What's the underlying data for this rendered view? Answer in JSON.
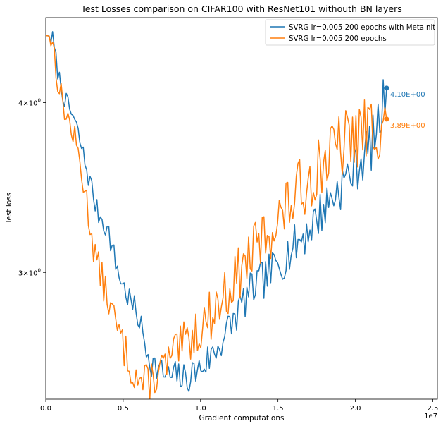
{
  "chart_data": {
    "type": "line",
    "title": "Test Losses comparison on CIFAR100 with ResNet101 withouth BN layers",
    "xlabel": "Gradient computations",
    "ylabel": "Test loss",
    "xlim": [
      0,
      25300000
    ],
    "ylim": [
      2.42,
      4.62
    ],
    "yscale": "log",
    "x_offset_text": "1e7",
    "xticks": [
      {
        "value": 0,
        "label": "0.0"
      },
      {
        "value": 5000000,
        "label": "0.5"
      },
      {
        "value": 10000000,
        "label": "1.0"
      },
      {
        "value": 15000000,
        "label": "1.5"
      },
      {
        "value": 20000000,
        "label": "2.0"
      },
      {
        "value": 25000000,
        "label": "2.5"
      }
    ],
    "yticks": [
      {
        "value": 3,
        "base": "3",
        "mult": "×",
        "ten": "10",
        "exp": "0"
      },
      {
        "value": 4,
        "base": "4",
        "mult": "×",
        "ten": "10",
        "exp": "0"
      }
    ],
    "grid": false,
    "legend_position": "top-right",
    "series": [
      {
        "name": "SVRG lr=0.005 200 epochs with MetaInit",
        "color": "#1f77b4",
        "end_label": "4.10E+00",
        "anchors": [
          [
            0,
            4.48
          ],
          [
            200000,
            4.48
          ],
          [
            450000,
            4.45
          ],
          [
            650000,
            4.3
          ],
          [
            900000,
            4.15
          ],
          [
            1300000,
            4.0
          ],
          [
            1800000,
            3.9
          ],
          [
            2200000,
            3.75
          ],
          [
            2700000,
            3.55
          ],
          [
            3000000,
            3.45
          ],
          [
            3300000,
            3.33
          ],
          [
            3700000,
            3.28
          ],
          [
            4100000,
            3.2
          ],
          [
            4500000,
            3.05
          ],
          [
            5000000,
            2.93
          ],
          [
            5500000,
            2.85
          ],
          [
            6000000,
            2.78
          ],
          [
            6400000,
            2.66
          ],
          [
            6800000,
            2.58
          ],
          [
            7200000,
            2.55
          ],
          [
            7600000,
            2.53
          ],
          [
            8000000,
            2.51
          ],
          [
            8500000,
            2.52
          ],
          [
            9000000,
            2.5
          ],
          [
            9500000,
            2.53
          ],
          [
            10000000,
            2.55
          ],
          [
            10500000,
            2.59
          ],
          [
            11000000,
            2.63
          ],
          [
            11500000,
            2.69
          ],
          [
            12000000,
            2.75
          ],
          [
            12500000,
            2.82
          ],
          [
            13000000,
            2.88
          ],
          [
            13500000,
            2.93
          ],
          [
            14000000,
            2.96
          ],
          [
            14500000,
            3.0
          ],
          [
            15000000,
            3.04
          ],
          [
            15500000,
            3.09
          ],
          [
            16000000,
            3.13
          ],
          [
            16500000,
            3.18
          ],
          [
            17000000,
            3.23
          ],
          [
            17500000,
            3.29
          ],
          [
            18000000,
            3.35
          ],
          [
            18500000,
            3.41
          ],
          [
            19000000,
            3.47
          ],
          [
            19500000,
            3.53
          ],
          [
            20000000,
            3.58
          ],
          [
            20500000,
            3.65
          ],
          [
            21000000,
            3.72
          ],
          [
            21500000,
            3.85
          ],
          [
            21900000,
            4.05
          ],
          [
            22020000,
            4.1
          ]
        ],
        "amp": 0.045,
        "seed": 7
      },
      {
        "name": "SVRG lr=0.005 200 epochs",
        "color": "#ff7f0e",
        "end_label": "3.89E+00",
        "anchors": [
          [
            0,
            4.48
          ],
          [
            200000,
            4.48
          ],
          [
            450000,
            4.44
          ],
          [
            650000,
            4.25
          ],
          [
            900000,
            4.08
          ],
          [
            1300000,
            3.93
          ],
          [
            1800000,
            3.78
          ],
          [
            2200000,
            3.62
          ],
          [
            2700000,
            3.35
          ],
          [
            3000000,
            3.18
          ],
          [
            3300000,
            3.05
          ],
          [
            3700000,
            2.95
          ],
          [
            4100000,
            2.85
          ],
          [
            4500000,
            2.75
          ],
          [
            5000000,
            2.65
          ],
          [
            5500000,
            2.56
          ],
          [
            6000000,
            2.5
          ],
          [
            6400000,
            2.48
          ],
          [
            6800000,
            2.5
          ],
          [
            7200000,
            2.53
          ],
          [
            7600000,
            2.55
          ],
          [
            8000000,
            2.58
          ],
          [
            8500000,
            2.62
          ],
          [
            9000000,
            2.66
          ],
          [
            9500000,
            2.7
          ],
          [
            10000000,
            2.74
          ],
          [
            10500000,
            2.78
          ],
          [
            11000000,
            2.83
          ],
          [
            11500000,
            2.88
          ],
          [
            12000000,
            2.94
          ],
          [
            12500000,
            3.0
          ],
          [
            13000000,
            3.06
          ],
          [
            13500000,
            3.12
          ],
          [
            14000000,
            3.17
          ],
          [
            14500000,
            3.23
          ],
          [
            15000000,
            3.28
          ],
          [
            15500000,
            3.34
          ],
          [
            16000000,
            3.4
          ],
          [
            16500000,
            3.46
          ],
          [
            17000000,
            3.52
          ],
          [
            17500000,
            3.58
          ],
          [
            18000000,
            3.63
          ],
          [
            18500000,
            3.67
          ],
          [
            19000000,
            3.71
          ],
          [
            19500000,
            3.75
          ],
          [
            20000000,
            3.78
          ],
          [
            20500000,
            3.8
          ],
          [
            21000000,
            3.83
          ],
          [
            21500000,
            3.87
          ],
          [
            21900000,
            3.89
          ],
          [
            22020000,
            3.89
          ]
        ],
        "amp": 0.065,
        "seed": 13
      }
    ]
  }
}
